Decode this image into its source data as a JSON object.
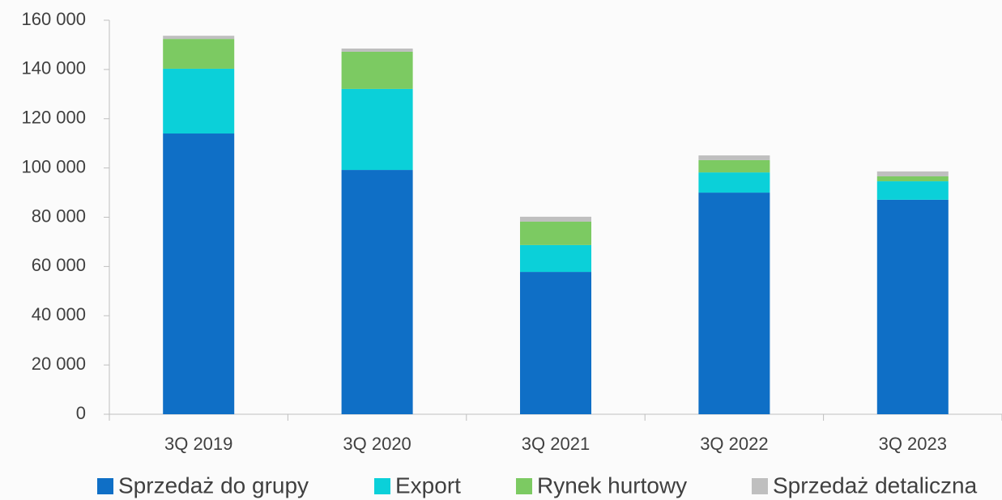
{
  "chart_data": {
    "type": "stacked_bar",
    "categories": [
      "3Q 2019",
      "3Q 2020",
      "3Q 2021",
      "3Q 2022",
      "3Q 2023"
    ],
    "series": [
      {
        "name": "Sprzedaż do grupy",
        "color": "#0f6fc6",
        "values": [
          114000,
          99200,
          57800,
          90000,
          87100
        ]
      },
      {
        "name": "Export",
        "color": "#0bd0d9",
        "values": [
          26300,
          32900,
          10900,
          8200,
          7500
        ]
      },
      {
        "name": "Rynek hurtowy",
        "color": "#7cca62",
        "values": [
          12100,
          15100,
          9500,
          5000,
          2000
        ]
      },
      {
        "name": "Sprzedaż detaliczna",
        "color": "#bfbfbf",
        "values": [
          1300,
          1300,
          2000,
          1900,
          2000
        ]
      }
    ],
    "ylim": [
      0,
      160000
    ],
    "yticks": [
      0,
      {
        "value": 20000,
        "label": "20 000"
      },
      {
        "value": 40000,
        "label": "40 000"
      },
      {
        "value": 60000,
        "label": "60 000"
      },
      {
        "value": 80000,
        "label": "80 000"
      },
      {
        "value": 100000,
        "label": "100 000"
      },
      {
        "value": 120000,
        "label": "120 000"
      },
      {
        "value": 140000,
        "label": "140 000"
      },
      {
        "value": 160000,
        "label": "160 000"
      }
    ],
    "legend": "bottom"
  }
}
